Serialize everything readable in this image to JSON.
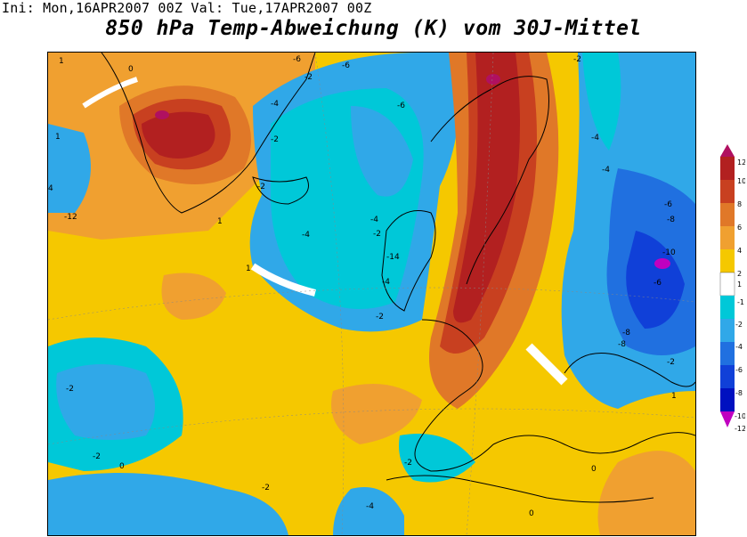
{
  "header": {
    "init_label": "Ini:",
    "init_time": "Mon,16APR2007",
    "init_hour": "00Z",
    "valid_label": "Val:",
    "valid_time": "Tue,17APR2007",
    "valid_hour": "00Z",
    "title": "850 hPa Temp-Abweichung (K) vom 30J-Mittel"
  },
  "legend": {
    "ticks": [
      "12",
      "10",
      "8",
      "6",
      "4",
      "2",
      "1",
      "-1",
      "-2",
      "-4",
      "-6",
      "-8",
      "-10",
      "-12"
    ],
    "colors": {
      "gt10": "#b01060",
      "8_10": "#b22020",
      "6_8": "#c84020",
      "4_6": "#e07828",
      "2_4": "#f0a030",
      "1_2": "#f5c800",
      "m1_1": "#ffffff",
      "m2_m1": "#00c8d8",
      "m4_m2": "#30a8e8",
      "m6_m4": "#2070e0",
      "m8_m6": "#1040d8",
      "m10_m8": "#0010c0",
      "lt_m10": "#c000c0"
    }
  },
  "map": {
    "contour_labels": [
      {
        "t": "1"
      },
      {
        "t": "-1"
      },
      {
        "t": "0"
      },
      {
        "t": "2"
      },
      {
        "t": "-2"
      },
      {
        "t": "-4"
      },
      {
        "t": "-6"
      },
      {
        "t": "-8"
      },
      {
        "t": "-10"
      },
      {
        "t": "-12"
      },
      {
        "t": "4"
      },
      {
        "t": "-14"
      }
    ]
  }
}
